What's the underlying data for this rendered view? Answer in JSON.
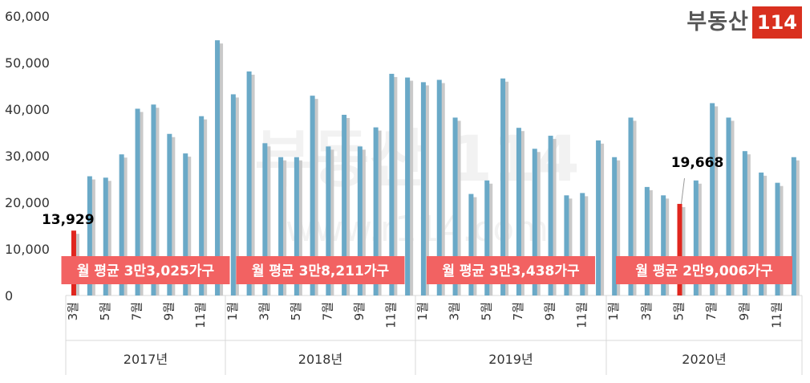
{
  "brand": {
    "name": "부동산",
    "badge": "114",
    "watermark": "부동산 114",
    "watermark_url": "www.r114.com"
  },
  "colors": {
    "bar": "#6aa9c7",
    "bar_shadow": "#c9c9c9",
    "highlight": "#e0261e",
    "avg_box": "#f26262",
    "avg_text": "#ffffff",
    "axis_text": "#333333"
  },
  "chart_data": {
    "type": "bar",
    "ylim": [
      0,
      60000
    ],
    "yticks": [
      "60,000",
      "50,000",
      "40,000",
      "30,000",
      "20,000",
      "10,000",
      "0"
    ],
    "groups": [
      {
        "year_label": "2017년",
        "tick_labels": [
          "3월",
          "5월",
          "7월",
          "9월",
          "11월"
        ],
        "average_label": "월 평균 3만3,025가구",
        "months": [
          3,
          4,
          5,
          6,
          7,
          8,
          9,
          10,
          11,
          12
        ],
        "values": [
          13929,
          25600,
          25300,
          30300,
          40100,
          41000,
          34700,
          30500,
          38500,
          54800
        ]
      },
      {
        "year_label": "2018년",
        "tick_labels": [
          "1월",
          "3월",
          "5월",
          "7월",
          "9월",
          "11월"
        ],
        "average_label": "월 평균 3만8,211가구",
        "months": [
          1,
          2,
          3,
          4,
          5,
          6,
          7,
          8,
          9,
          10,
          11,
          12
        ],
        "values": [
          43200,
          48100,
          32700,
          29700,
          29700,
          42900,
          32000,
          38800,
          32000,
          36100,
          47600,
          46800
        ]
      },
      {
        "year_label": "2019년",
        "tick_labels": [
          "1월",
          "3월",
          "5월",
          "7월",
          "9월",
          "11월"
        ],
        "average_label": "월 평균 3만3,438가구",
        "months": [
          1,
          2,
          3,
          4,
          5,
          6,
          7,
          8,
          9,
          10,
          11,
          12
        ],
        "values": [
          45800,
          46300,
          38200,
          21800,
          24700,
          46600,
          36000,
          31500,
          34300,
          21500,
          22000,
          33300
        ]
      },
      {
        "year_label": "2020년",
        "tick_labels": [
          "1월",
          "3월",
          "5월",
          "7월",
          "9월",
          "11월"
        ],
        "average_label": "월 평균 2만9,006가구",
        "months": [
          1,
          2,
          3,
          4,
          5,
          6,
          7,
          8,
          9,
          10,
          11,
          12
        ],
        "values": [
          29700,
          38200,
          23300,
          21500,
          19668,
          24700,
          41300,
          38200,
          31000,
          26400,
          24200,
          29700
        ]
      }
    ],
    "highlights": [
      {
        "label": "13,929",
        "value": 13929,
        "year": "2017년",
        "month": 3
      },
      {
        "label": "19,668",
        "value": 19668,
        "year": "2020년",
        "month": 5
      }
    ]
  }
}
